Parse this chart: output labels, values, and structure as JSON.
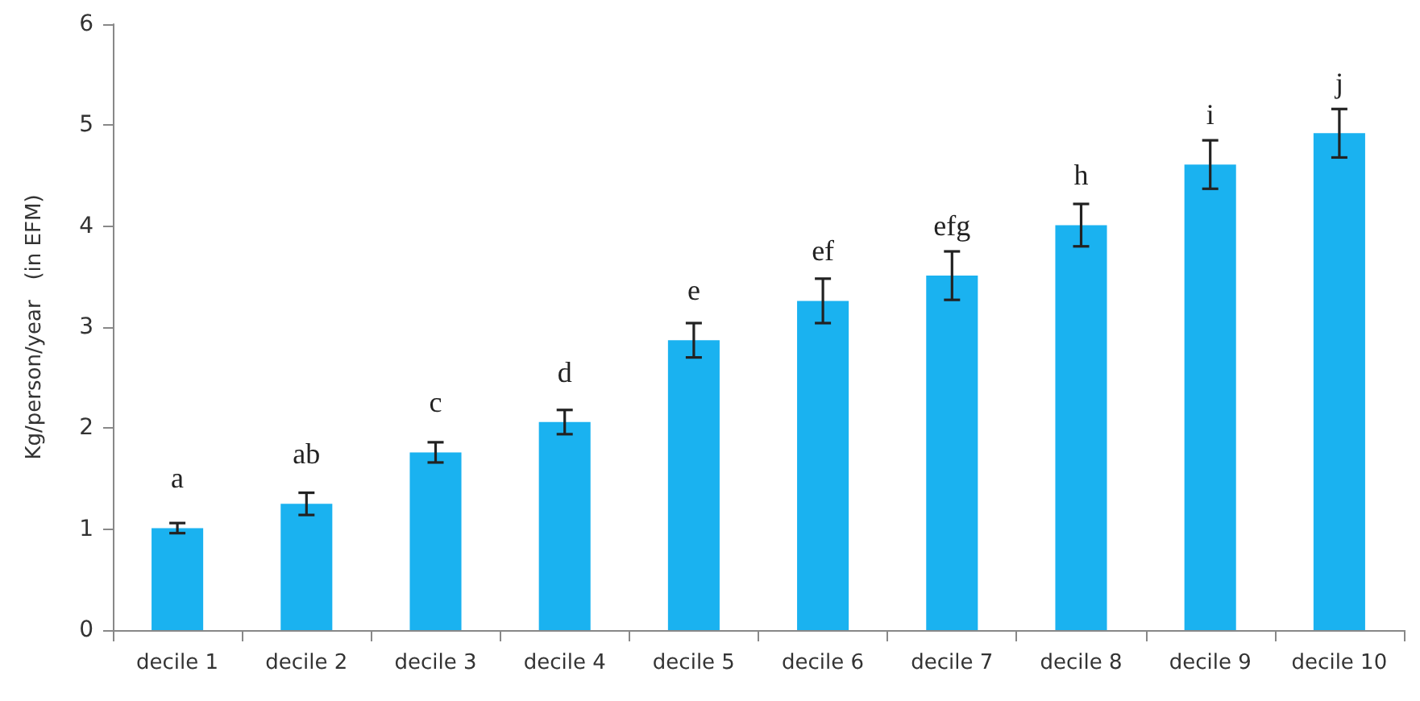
{
  "chart_data": {
    "type": "bar",
    "ylabel": "Kg/person/year   (in EFM)",
    "categories": [
      "decile 1",
      "decile 2",
      "decile 3",
      "decile 4",
      "decile 5",
      "decile 6",
      "decile 7",
      "decile 8",
      "decile 9",
      "decile 10"
    ],
    "values": [
      1.01,
      1.25,
      1.76,
      2.06,
      2.87,
      3.26,
      3.51,
      4.01,
      4.61,
      4.92
    ],
    "errors": [
      0.05,
      0.11,
      0.1,
      0.12,
      0.17,
      0.22,
      0.24,
      0.21,
      0.24,
      0.24
    ],
    "value_labels": [
      "a",
      "ab",
      "c",
      "d",
      "e",
      "ef",
      "efg",
      "h",
      "i",
      "j"
    ],
    "color": "#1ab2f0",
    "ylim": [
      0,
      6
    ],
    "yticks": [
      0,
      1,
      2,
      3,
      4,
      5,
      6
    ],
    "grid": false
  }
}
